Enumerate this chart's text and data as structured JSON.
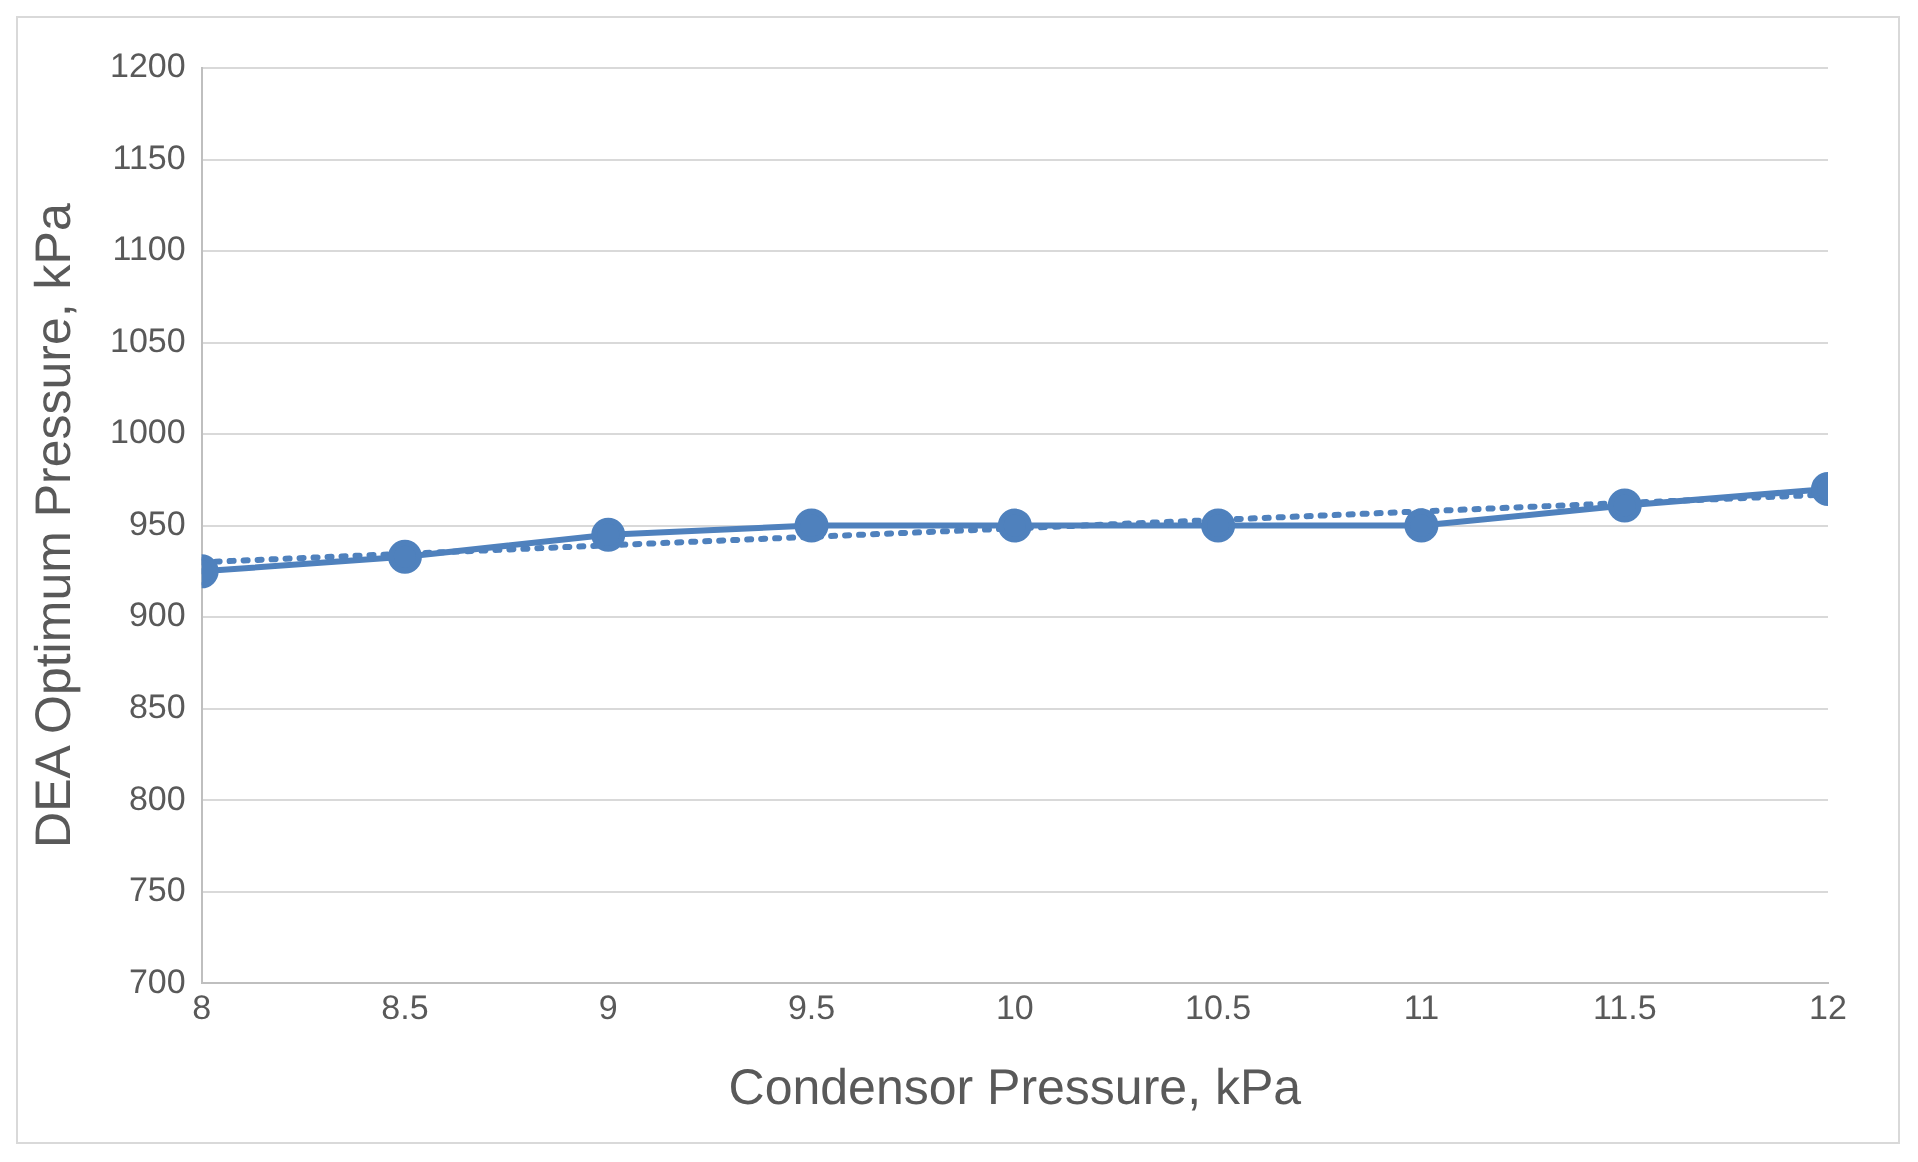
{
  "chart_data": {
    "type": "line",
    "xlabel": "Condensor Pressure, kPa",
    "ylabel": "DEA Optimum Pressure, kPa",
    "x": [
      8,
      8.5,
      9,
      9.5,
      10,
      10.5,
      11,
      11.5,
      12
    ],
    "series": [
      {
        "color": "#4f81bd",
        "values": [
          925,
          933,
          945,
          950,
          950,
          950,
          950,
          961,
          970
        ],
        "marker": "circle",
        "line_style": "solid"
      },
      {
        "color": "#4f81bd",
        "x": [
          8,
          12
        ],
        "values": [
          930,
          967
        ],
        "marker": "none",
        "line_style": "dotted"
      }
    ],
    "xlim": [
      8,
      12
    ],
    "xticks": [
      8,
      8.5,
      9,
      9.5,
      10,
      10.5,
      11,
      11.5,
      12
    ],
    "ylim": [
      700,
      1200
    ],
    "yticks": [
      700,
      750,
      800,
      850,
      900,
      950,
      1000,
      1050,
      1100,
      1150,
      1200
    ],
    "grid": "y",
    "legend": false
  }
}
